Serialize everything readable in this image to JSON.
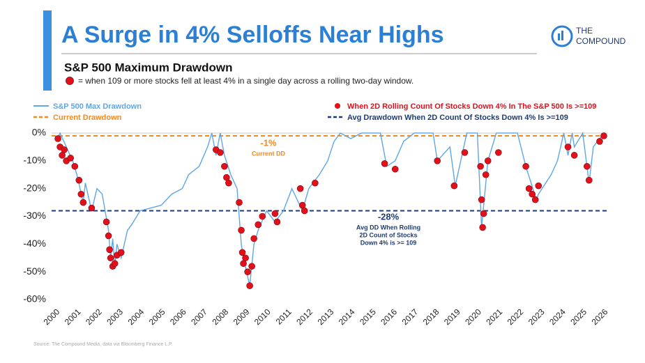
{
  "chart_data": {
    "type": "line",
    "title": "A Surge in 4% Selloffs Near Highs",
    "brand": [
      "THE",
      "COMPOUND"
    ],
    "subtitle": "S&P 500 Maximum Drawdown",
    "note": "= when 109 or more stocks fell at least 4% in a single day across a rolling two-day window.",
    "source": "Source: The Compound Media, data via Bloomberg Finance L.P.",
    "xlim": [
      1999.8,
      2026.2
    ],
    "ylim": [
      -61.5,
      1.5
    ],
    "xticks": [
      2000,
      2001,
      2002,
      2003,
      2004,
      2005,
      2006,
      2007,
      2008,
      2009,
      2010,
      2011,
      2012,
      2013,
      2014,
      2015,
      2016,
      2017,
      2018,
      2019,
      2020,
      2021,
      2022,
      2023,
      2024,
      2025,
      2026
    ],
    "yticks": [
      {
        "value": 0,
        "label": "0%"
      },
      {
        "value": -10,
        "label": "-10%"
      },
      {
        "value": -20,
        "label": "-20%"
      },
      {
        "value": -30,
        "label": "-30%"
      },
      {
        "value": -40,
        "label": "-40%"
      },
      {
        "value": -50,
        "label": "-50%"
      },
      {
        "value": -60,
        "label": "-60%"
      }
    ],
    "series": [
      {
        "name": "S&P 500 Max Drawdown",
        "color": "#5ea6e6",
        "x": [
          2000.0,
          2000.2,
          2000.5,
          2000.8,
          2001.0,
          2001.3,
          2001.4,
          2001.7,
          2001.95,
          2002.2,
          2002.5,
          2002.6,
          2002.7,
          2002.8,
          2002.9,
          2003.1,
          2003.4,
          2003.6,
          2004.0,
          2004.5,
          2005.0,
          2005.5,
          2006.0,
          2006.3,
          2006.8,
          2007.2,
          2007.4,
          2007.6,
          2007.8,
          2008.0,
          2008.3,
          2008.6,
          2008.8,
          2008.9,
          2009.2,
          2009.4,
          2009.6,
          2010.0,
          2010.4,
          2010.8,
          2011.2,
          2011.7,
          2012.0,
          2012.5,
          2012.9,
          2013.2,
          2013.5,
          2014.0,
          2014.5,
          2015.4,
          2015.7,
          2016.1,
          2016.5,
          2017.0,
          2017.9,
          2018.1,
          2018.7,
          2018.95,
          2019.5,
          2020.0,
          2020.2,
          2020.5,
          2020.9,
          2021.9,
          2022.3,
          2022.8,
          2022.9,
          2023.5,
          2023.8,
          2024.1,
          2024.3,
          2024.5,
          2024.6,
          2025.0,
          2025.3,
          2025.5,
          2025.9
        ],
        "values": [
          -3,
          0,
          -5,
          -10,
          -15,
          -25,
          -18,
          -28,
          -20,
          -22,
          -35,
          -45,
          -38,
          -48,
          -40,
          -45,
          -35,
          -33,
          -28,
          -27,
          -26,
          -22,
          -20,
          -15,
          -12,
          -5,
          0,
          -8,
          0,
          -8,
          -15,
          -20,
          -40,
          -45,
          -55,
          -40,
          -35,
          -28,
          -32,
          -28,
          -20,
          -28,
          -20,
          -15,
          -10,
          -3,
          0,
          -2,
          0,
          0,
          -12,
          -10,
          -3,
          0,
          0,
          -10,
          -5,
          -19,
          0,
          0,
          -34,
          -10,
          0,
          0,
          -12,
          -24,
          -22,
          -15,
          -10,
          0,
          -8,
          0,
          -5,
          0,
          -18,
          -5,
          -1
        ]
      },
      {
        "name": "When 2D Rolling Count Of Stocks Down 4% In The S&P 500 Is >=109",
        "color": "#e3101c",
        "type": "scatter",
        "x": [
          2000.1,
          2000.2,
          2000.3,
          2000.4,
          2000.5,
          2000.7,
          2000.9,
          2001.1,
          2001.2,
          2001.3,
          2001.7,
          2002.4,
          2002.5,
          2002.55,
          2002.6,
          2002.7,
          2002.8,
          2002.9,
          2003.1,
          2007.6,
          2007.8,
          2008.0,
          2008.1,
          2008.2,
          2008.7,
          2008.8,
          2008.85,
          2008.9,
          2009.0,
          2009.1,
          2009.2,
          2009.3,
          2009.4,
          2009.6,
          2009.8,
          2010.4,
          2010.5,
          2011.6,
          2011.7,
          2011.8,
          2012.3,
          2015.6,
          2016.1,
          2018.1,
          2018.9,
          2019.4,
          2020.15,
          2020.2,
          2020.25,
          2020.3,
          2020.4,
          2020.5,
          2021.0,
          2022.3,
          2022.45,
          2022.6,
          2022.75,
          2022.9,
          2024.3,
          2024.6,
          2025.2,
          2025.3,
          2025.8,
          2026.0
        ],
        "values": [
          -2,
          -5,
          -8,
          -6,
          -10,
          -9,
          -12,
          -17,
          -22,
          -25,
          -27,
          -32,
          -37,
          -42,
          -45,
          -48,
          -47,
          -44,
          -43,
          -6,
          -7,
          -12,
          -16,
          -18,
          -25,
          -35,
          -43,
          -47,
          -45,
          -50,
          -55,
          -48,
          -38,
          -33,
          -30,
          -29,
          -32,
          -20,
          -26,
          -28,
          -18,
          -11,
          -13,
          -10,
          -19,
          -7,
          -12,
          -24,
          -34,
          -29,
          -15,
          -10,
          -7,
          -12,
          -20,
          -22,
          -24,
          -19,
          -5,
          -8,
          -12,
          -17,
          -3,
          -1
        ]
      }
    ],
    "reference_lines": [
      {
        "name": "Current Drawdown",
        "color": "#f08a24",
        "value": -1
      },
      {
        "name": "Avg Drawdown When 2D Count Of Stocks Down 4% Is >=109",
        "color": "#1f3b73",
        "value": -28
      }
    ],
    "annotations": [
      {
        "lines": [
          "-1%",
          "Current DD"
        ],
        "color": "#f08a24"
      },
      {
        "lines": [
          "-28%",
          "Avg DD When Rolling",
          "2D Count of Stocks",
          "Down 4% is >= 109"
        ],
        "color": "#1f3b73"
      }
    ]
  }
}
